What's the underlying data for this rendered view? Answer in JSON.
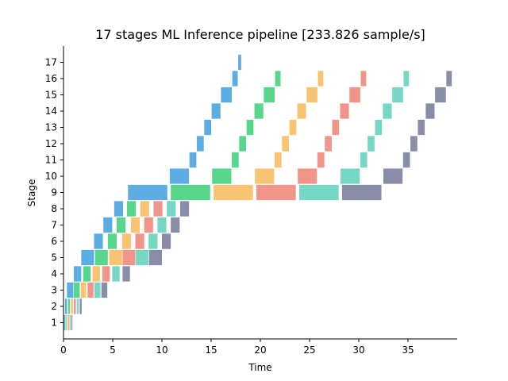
{
  "chart_data": {
    "type": "bar",
    "subtype": "gantt",
    "title": "17 stages ML Inference pipeline [233.826 sample/s]",
    "xlabel": "Time",
    "ylabel": "Stage",
    "xlim": [
      0,
      40
    ],
    "ylim": [
      0,
      18
    ],
    "xticks": [
      0,
      5,
      10,
      15,
      20,
      25,
      30,
      35
    ],
    "yticks": [
      1,
      2,
      3,
      4,
      5,
      6,
      7,
      8,
      9,
      10,
      11,
      12,
      13,
      14,
      15,
      16,
      17
    ],
    "grid": false,
    "legend": "none",
    "colors": [
      "#5DADE2",
      "#58D68D",
      "#F8C471",
      "#F1948A",
      "#76D7C4",
      "#8A8DA8"
    ],
    "stages": [
      {
        "stage": 1,
        "bars": [
          [
            0.05,
            0.15
          ],
          [
            0.2,
            0.3
          ],
          [
            0.35,
            0.45
          ],
          [
            0.5,
            0.6
          ],
          [
            0.65,
            0.75
          ],
          [
            0.8,
            0.9
          ]
        ]
      },
      {
        "stage": 2,
        "bars": [
          [
            0.15,
            0.35
          ],
          [
            0.45,
            0.65
          ],
          [
            0.75,
            0.95
          ],
          [
            1.05,
            1.25
          ],
          [
            1.35,
            1.55
          ],
          [
            1.65,
            1.85
          ]
        ]
      },
      {
        "stage": 3,
        "bars": [
          [
            0.35,
            1.0
          ],
          [
            1.05,
            1.65
          ],
          [
            1.75,
            2.3
          ],
          [
            2.45,
            3.05
          ],
          [
            3.15,
            3.75
          ],
          [
            3.85,
            4.45
          ]
        ]
      },
      {
        "stage": 4,
        "bars": [
          [
            1.05,
            1.8
          ],
          [
            2.0,
            2.75
          ],
          [
            2.95,
            3.7
          ],
          [
            3.95,
            4.7
          ],
          [
            4.95,
            5.7
          ],
          [
            6.0,
            6.75
          ]
        ]
      },
      {
        "stage": 5,
        "bars": [
          [
            1.8,
            3.1
          ],
          [
            3.2,
            4.5
          ],
          [
            4.65,
            5.95
          ],
          [
            6.0,
            7.3
          ],
          [
            7.35,
            8.65
          ],
          [
            8.7,
            10.0
          ]
        ]
      },
      {
        "stage": 6,
        "bars": [
          [
            3.1,
            4.0
          ],
          [
            4.5,
            5.4
          ],
          [
            5.95,
            6.85
          ],
          [
            7.3,
            8.2
          ],
          [
            8.65,
            9.55
          ],
          [
            10.0,
            10.9
          ]
        ]
      },
      {
        "stage": 7,
        "bars": [
          [
            4.05,
            4.95
          ],
          [
            5.4,
            6.3
          ],
          [
            6.85,
            7.75
          ],
          [
            8.2,
            9.1
          ],
          [
            9.55,
            10.45
          ],
          [
            10.9,
            11.8
          ]
        ]
      },
      {
        "stage": 8,
        "bars": [
          [
            5.15,
            6.05
          ],
          [
            6.45,
            7.35
          ],
          [
            7.8,
            8.7
          ],
          [
            9.15,
            10.05
          ],
          [
            10.5,
            11.4
          ],
          [
            11.85,
            12.75
          ]
        ]
      },
      {
        "stage": 9,
        "bars": [
          [
            6.55,
            10.55
          ],
          [
            10.9,
            14.9
          ],
          [
            15.25,
            19.25
          ],
          [
            19.6,
            23.6
          ],
          [
            23.95,
            27.95
          ],
          [
            28.3,
            32.3
          ]
        ]
      },
      {
        "stage": 10,
        "bars": [
          [
            10.8,
            12.75
          ],
          [
            15.1,
            17.05
          ],
          [
            19.45,
            21.4
          ],
          [
            23.8,
            25.75
          ],
          [
            28.15,
            30.1
          ],
          [
            32.5,
            34.45
          ]
        ]
      },
      {
        "stage": 11,
        "bars": [
          [
            12.8,
            13.5
          ],
          [
            17.1,
            17.8
          ],
          [
            21.45,
            22.15
          ],
          [
            25.8,
            26.5
          ],
          [
            30.15,
            30.85
          ],
          [
            34.5,
            35.2
          ]
        ]
      },
      {
        "stage": 12,
        "bars": [
          [
            13.55,
            14.25
          ],
          [
            17.85,
            18.55
          ],
          [
            22.2,
            22.9
          ],
          [
            26.55,
            27.25
          ],
          [
            30.9,
            31.6
          ],
          [
            35.25,
            35.95
          ]
        ]
      },
      {
        "stage": 13,
        "bars": [
          [
            14.3,
            15.0
          ],
          [
            18.6,
            19.3
          ],
          [
            22.95,
            23.65
          ],
          [
            27.3,
            28.0
          ],
          [
            31.65,
            32.35
          ],
          [
            36.0,
            36.7
          ]
        ]
      },
      {
        "stage": 14,
        "bars": [
          [
            15.05,
            15.95
          ],
          [
            19.4,
            20.3
          ],
          [
            23.75,
            24.65
          ],
          [
            28.1,
            29.0
          ],
          [
            32.45,
            33.35
          ],
          [
            36.8,
            37.7
          ]
        ]
      },
      {
        "stage": 15,
        "bars": [
          [
            16.0,
            17.1
          ],
          [
            20.35,
            21.45
          ],
          [
            24.7,
            25.8
          ],
          [
            29.05,
            30.15
          ],
          [
            33.4,
            34.5
          ],
          [
            37.75,
            38.85
          ]
        ]
      },
      {
        "stage": 16,
        "bars": [
          [
            17.15,
            17.7
          ],
          [
            21.5,
            22.05
          ],
          [
            25.85,
            26.4
          ],
          [
            30.2,
            30.75
          ],
          [
            34.55,
            35.1
          ],
          [
            38.9,
            39.45
          ]
        ]
      },
      {
        "stage": 17,
        "bars": [
          [
            17.75,
            18.05
          ]
        ]
      }
    ]
  }
}
